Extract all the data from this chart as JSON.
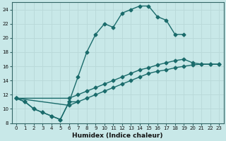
{
  "xlabel": "Humidex (Indice chaleur)",
  "background_color": "#c8e8e8",
  "grid_color": "#b8d8d8",
  "line_color": "#1a6b6b",
  "xlim": [
    -0.5,
    23.5
  ],
  "ylim": [
    8,
    25
  ],
  "xticks": [
    0,
    1,
    2,
    3,
    4,
    5,
    6,
    7,
    8,
    9,
    10,
    11,
    12,
    13,
    14,
    15,
    16,
    17,
    18,
    19,
    20,
    21,
    22,
    23
  ],
  "yticks": [
    8,
    10,
    12,
    14,
    16,
    18,
    20,
    22,
    24
  ],
  "line1_x": [
    0,
    1,
    2,
    3,
    4,
    5,
    6,
    7,
    8,
    9,
    10,
    11,
    12,
    13,
    14,
    15,
    16,
    17,
    18,
    19
  ],
  "line1_y": [
    11.5,
    11.0,
    10.0,
    9.5,
    9.0,
    8.5,
    11.0,
    14.5,
    18.0,
    20.5,
    22.0,
    21.5,
    23.5,
    24.0,
    24.5,
    24.5,
    23.0,
    22.5,
    20.5,
    20.5
  ],
  "line2_x": [
    0,
    6,
    7,
    8,
    9,
    10,
    11,
    12,
    13,
    14,
    15,
    16,
    17,
    18,
    19,
    20,
    21,
    22,
    23
  ],
  "line2_y": [
    11.5,
    11.5,
    12.0,
    12.5,
    13.0,
    13.5,
    14.0,
    14.5,
    15.0,
    15.5,
    15.8,
    16.2,
    16.5,
    16.8,
    17.0,
    16.5,
    16.3,
    16.3,
    16.3
  ],
  "line3_x": [
    0,
    6,
    7,
    8,
    9,
    10,
    11,
    12,
    13,
    14,
    15,
    16,
    17,
    18,
    19,
    20,
    21,
    22,
    23
  ],
  "line3_y": [
    11.5,
    10.5,
    11.0,
    11.5,
    12.0,
    12.5,
    13.0,
    13.5,
    14.0,
    14.5,
    15.0,
    15.3,
    15.5,
    15.8,
    16.0,
    16.2,
    16.3,
    16.3,
    16.3
  ],
  "line4_x": [
    0,
    1,
    2,
    3,
    4,
    5,
    6,
    7
  ],
  "line4_y": [
    11.5,
    11.0,
    10.0,
    9.5,
    9.0,
    8.5,
    11.0,
    11.0
  ],
  "marker": "D",
  "marker_size": 2.5,
  "linewidth": 1.0
}
